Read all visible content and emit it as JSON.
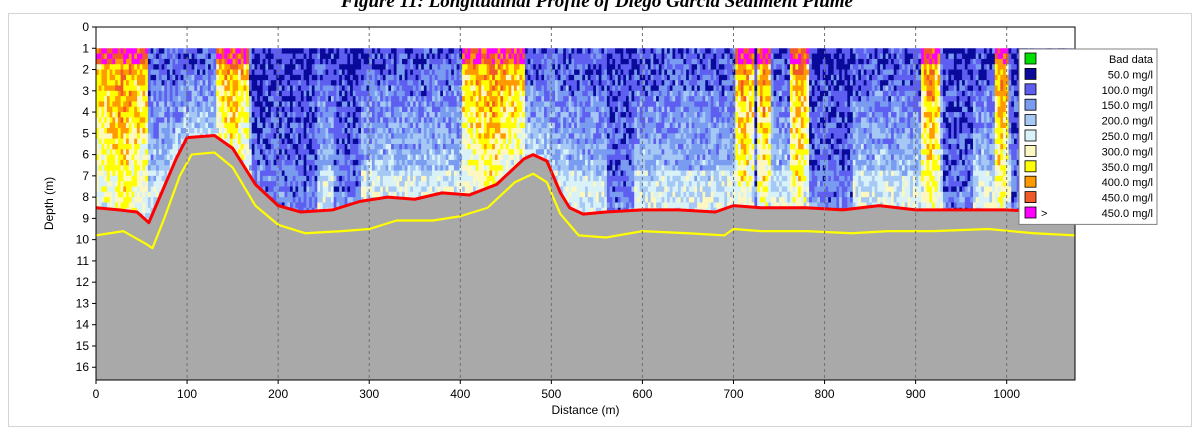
{
  "header": {
    "title": "Figure 11: Longitudinal Profile of Diego Garcia Sediment Plume"
  },
  "chart_data": {
    "type": "heatmap",
    "xlabel": "Distance (m)",
    "ylabel": "Depth (m)",
    "xlim": [
      0,
      1075
    ],
    "ylim": [
      16.6,
      0
    ],
    "x_ticks": [
      0,
      100,
      200,
      300,
      400,
      500,
      600,
      700,
      800,
      900,
      1000
    ],
    "y_ticks": [
      0,
      1,
      2,
      3,
      4,
      5,
      6,
      7,
      8,
      9,
      10,
      11,
      12,
      13,
      14,
      15,
      16
    ],
    "vertical_gridlines_at": [
      100,
      200,
      300,
      400,
      500,
      600,
      700,
      800,
      900,
      1000
    ],
    "grid_style": "dashed vertical",
    "data_start_depth": 1,
    "legend_position": "right",
    "legend": [
      {
        "label": "Bad data",
        "color": "#00e000",
        "prefix": ""
      },
      {
        "label": "50.0 mg/l",
        "color": "#0a0a9a",
        "prefix": ""
      },
      {
        "label": "100.0 mg/l",
        "color": "#5e5ef0",
        "prefix": ""
      },
      {
        "label": "150.0 mg/l",
        "color": "#7a9cf0",
        "prefix": ""
      },
      {
        "label": "200.0 mg/l",
        "color": "#a6c8f4",
        "prefix": ""
      },
      {
        "label": "250.0 mg/l",
        "color": "#d8f2f8",
        "prefix": ""
      },
      {
        "label": "300.0 mg/l",
        "color": "#fcf8c0",
        "prefix": ""
      },
      {
        "label": "350.0 mg/l",
        "color": "#ffff00",
        "prefix": ""
      },
      {
        "label": "400.0 mg/l",
        "color": "#ff9a00",
        "prefix": ""
      },
      {
        "label": "450.0 mg/l",
        "color": "#f05a28",
        "prefix": ""
      },
      {
        "label": "450.0 mg/l",
        "color": "#ff00ff",
        "prefix": ">"
      }
    ],
    "bottom_color": "#a9a9a9",
    "series": [
      {
        "name": "",
        "color": "#ff0000",
        "points": [
          [
            0,
            8.5
          ],
          [
            25,
            8.6
          ],
          [
            45,
            8.7
          ],
          [
            58,
            9.2
          ],
          [
            70,
            8.0
          ],
          [
            88,
            6.2
          ],
          [
            100,
            5.2
          ],
          [
            130,
            5.1
          ],
          [
            150,
            5.7
          ],
          [
            175,
            7.4
          ],
          [
            200,
            8.4
          ],
          [
            225,
            8.7
          ],
          [
            260,
            8.6
          ],
          [
            290,
            8.2
          ],
          [
            320,
            8.0
          ],
          [
            350,
            8.1
          ],
          [
            380,
            7.8
          ],
          [
            410,
            7.9
          ],
          [
            440,
            7.4
          ],
          [
            470,
            6.2
          ],
          [
            480,
            6.0
          ],
          [
            495,
            6.3
          ],
          [
            510,
            7.8
          ],
          [
            520,
            8.5
          ],
          [
            535,
            8.8
          ],
          [
            560,
            8.7
          ],
          [
            600,
            8.6
          ],
          [
            640,
            8.6
          ],
          [
            680,
            8.7
          ],
          [
            700,
            8.4
          ],
          [
            730,
            8.5
          ],
          [
            780,
            8.5
          ],
          [
            820,
            8.6
          ],
          [
            860,
            8.4
          ],
          [
            900,
            8.6
          ],
          [
            950,
            8.6
          ],
          [
            1000,
            8.6
          ],
          [
            1040,
            8.7
          ],
          [
            1075,
            8.7
          ]
        ]
      },
      {
        "name": "",
        "color": "#ffff00",
        "points": [
          [
            0,
            9.8
          ],
          [
            30,
            9.6
          ],
          [
            55,
            10.2
          ],
          [
            62,
            10.4
          ],
          [
            75,
            9.0
          ],
          [
            92,
            7.0
          ],
          [
            105,
            6.0
          ],
          [
            130,
            5.9
          ],
          [
            150,
            6.6
          ],
          [
            175,
            8.4
          ],
          [
            200,
            9.3
          ],
          [
            230,
            9.7
          ],
          [
            270,
            9.6
          ],
          [
            300,
            9.5
          ],
          [
            330,
            9.1
          ],
          [
            370,
            9.1
          ],
          [
            400,
            8.9
          ],
          [
            430,
            8.5
          ],
          [
            460,
            7.3
          ],
          [
            480,
            6.9
          ],
          [
            495,
            7.3
          ],
          [
            510,
            8.8
          ],
          [
            530,
            9.8
          ],
          [
            560,
            9.9
          ],
          [
            600,
            9.6
          ],
          [
            650,
            9.7
          ],
          [
            690,
            9.8
          ],
          [
            700,
            9.5
          ],
          [
            730,
            9.6
          ],
          [
            780,
            9.6
          ],
          [
            830,
            9.7
          ],
          [
            870,
            9.6
          ],
          [
            920,
            9.6
          ],
          [
            980,
            9.5
          ],
          [
            1030,
            9.7
          ],
          [
            1075,
            9.8
          ]
        ]
      }
    ],
    "plume_high_zones": [
      [
        0,
        55
      ],
      [
        130,
        165
      ],
      [
        400,
        470
      ],
      [
        700,
        720
      ],
      [
        725,
        740
      ],
      [
        760,
        780
      ],
      [
        905,
        925
      ],
      [
        985,
        1000
      ]
    ],
    "plume_low_zones": [
      [
        170,
        240
      ],
      [
        260,
        290
      ],
      [
        560,
        590
      ],
      [
        720,
        735
      ],
      [
        780,
        830
      ],
      [
        930,
        960
      ],
      [
        1005,
        1030
      ]
    ]
  }
}
